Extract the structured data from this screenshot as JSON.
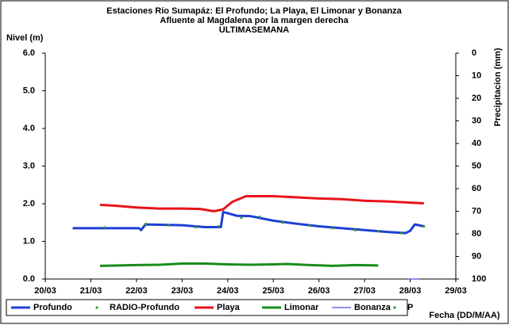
{
  "chart_data": {
    "type": "line",
    "title": "Estaciones Río Sumapáz: El Profundo; La Playa, El Limonar y Bonanza",
    "subtitle": "Afluente al Magdalena por la margen derecha",
    "subtitle2": "ULTIMASEMANA",
    "ylabel": "Nivel (m)",
    "y2label": "Precipitacion (mm)",
    "xlabel": "Fecha (DD/M/AA)",
    "xlim": [
      20,
      29
    ],
    "xticks": [
      {
        "value": 20,
        "label": "20/03"
      },
      {
        "value": 21,
        "label": "21/03"
      },
      {
        "value": 22,
        "label": "22/03"
      },
      {
        "value": 23,
        "label": "23/03"
      },
      {
        "value": 24,
        "label": "24/03"
      },
      {
        "value": 25,
        "label": "25/03"
      },
      {
        "value": 26,
        "label": "26/03"
      },
      {
        "value": 27,
        "label": "27/03"
      },
      {
        "value": 28,
        "label": "28/03"
      },
      {
        "value": 29,
        "label": "29/03"
      }
    ],
    "ylim": [
      0,
      6
    ],
    "yticks": [
      {
        "value": 0,
        "label": "0.0"
      },
      {
        "value": 1,
        "label": "1.0"
      },
      {
        "value": 2,
        "label": "2.0"
      },
      {
        "value": 3,
        "label": "3.0"
      },
      {
        "value": 4,
        "label": "4.0"
      },
      {
        "value": 5,
        "label": "5.0"
      },
      {
        "value": 6,
        "label": "6.0"
      }
    ],
    "y2lim": [
      0,
      100
    ],
    "y2_inverted": true,
    "y2ticks": [
      0,
      10,
      20,
      30,
      40,
      50,
      60,
      70,
      80,
      90,
      100
    ],
    "grid": false,
    "legend": "bottom",
    "series": [
      {
        "name": "Profundo",
        "color": "#1f3fd6",
        "marker": "line",
        "x": [
          20.6,
          22.05,
          22.1,
          22.2,
          23.0,
          23.5,
          23.85,
          23.9,
          24.2,
          24.5,
          25.0,
          25.5,
          26.0,
          26.5,
          27.0,
          27.5,
          27.9,
          28.0,
          28.1,
          28.3
        ],
        "values": [
          1.35,
          1.35,
          1.3,
          1.45,
          1.43,
          1.38,
          1.38,
          1.78,
          1.68,
          1.67,
          1.55,
          1.47,
          1.4,
          1.35,
          1.3,
          1.25,
          1.22,
          1.28,
          1.45,
          1.4
        ]
      },
      {
        "name": "RADIO-Profundo",
        "color": "#2e9a2e",
        "marker": "dot",
        "x": [
          21.3,
          22.2,
          22.7,
          23.3,
          23.8,
          24.3,
          24.7,
          25.2,
          25.8,
          26.3,
          26.8,
          27.3,
          27.8,
          28.3
        ],
        "values": [
          1.37,
          1.46,
          1.43,
          1.38,
          1.4,
          1.63,
          1.65,
          1.5,
          1.42,
          1.35,
          1.3,
          1.27,
          1.22,
          1.4
        ]
      },
      {
        "name": "Playa",
        "color": "#e8141b",
        "marker": "line",
        "x": [
          21.2,
          21.5,
          22.0,
          22.5,
          23.0,
          23.4,
          23.7,
          23.9,
          24.1,
          24.4,
          25.0,
          25.5,
          26.0,
          26.5,
          27.0,
          27.5,
          28.0,
          28.3
        ],
        "values": [
          1.97,
          1.95,
          1.9,
          1.87,
          1.87,
          1.86,
          1.8,
          1.85,
          2.05,
          2.2,
          2.2,
          2.17,
          2.14,
          2.12,
          2.08,
          2.06,
          2.03,
          2.01
        ]
      },
      {
        "name": "Limonar",
        "color": "#1a8c1a",
        "marker": "line",
        "x": [
          21.2,
          22.0,
          22.5,
          23.0,
          23.5,
          24.0,
          24.5,
          25.0,
          25.3,
          25.8,
          26.3,
          26.8,
          27.3
        ],
        "values": [
          0.35,
          0.37,
          0.38,
          0.41,
          0.41,
          0.39,
          0.38,
          0.39,
          0.4,
          0.37,
          0.35,
          0.37,
          0.36
        ]
      },
      {
        "name": "Bonanza",
        "color": "#2222cc",
        "marker": "thin",
        "x": [
          27.95,
          28.2
        ],
        "values": [
          0,
          0
        ]
      },
      {
        "name": "P",
        "color": "#2e9a2e",
        "marker": "dot",
        "x": [],
        "values": []
      }
    ]
  }
}
